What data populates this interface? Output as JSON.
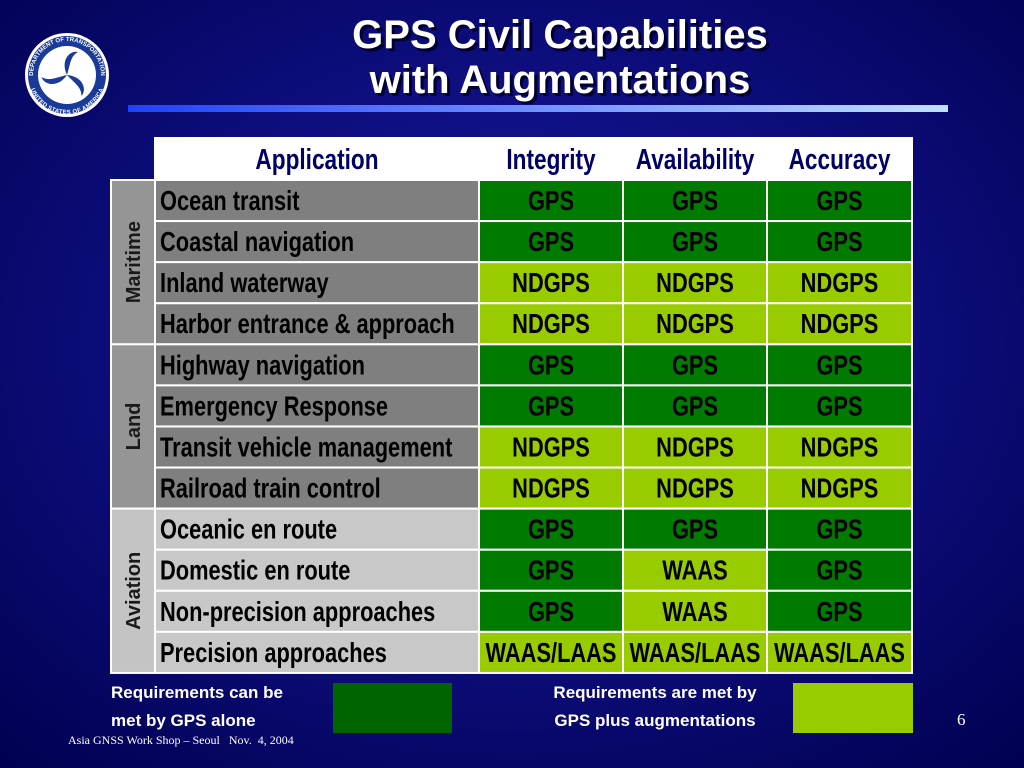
{
  "header": {
    "title_lines": [
      "GPS Civil Capabilities",
      "with Augmentations"
    ],
    "logo_top": "DEPARTMENT OF TRANSPORTATION",
    "logo_bottom": "UNITED STATES OF AMERICA"
  },
  "table": {
    "columns": [
      "Application",
      "Integrity",
      "Availability",
      "Accuracy"
    ],
    "groups": [
      {
        "label": "Maritime",
        "label_color": "#959595",
        "row_color": "#7f7f7f",
        "rows": [
          {
            "application": "Ocean transit",
            "cells": [
              {
                "text": "GPS",
                "color": "#007a00"
              },
              {
                "text": "GPS",
                "color": "#007a00"
              },
              {
                "text": "GPS",
                "color": "#007a00"
              }
            ]
          },
          {
            "application": "Coastal navigation",
            "cells": [
              {
                "text": "GPS",
                "color": "#007a00"
              },
              {
                "text": "GPS",
                "color": "#007a00"
              },
              {
                "text": "GPS",
                "color": "#007a00"
              }
            ]
          },
          {
            "application": "Inland waterway",
            "cells": [
              {
                "text": "NDGPS",
                "color": "#99cc00"
              },
              {
                "text": "NDGPS",
                "color": "#99cc00"
              },
              {
                "text": "NDGPS",
                "color": "#99cc00"
              }
            ]
          },
          {
            "application": "Harbor entrance & approach",
            "cells": [
              {
                "text": "NDGPS",
                "color": "#99cc00"
              },
              {
                "text": "NDGPS",
                "color": "#99cc00"
              },
              {
                "text": "NDGPS",
                "color": "#99cc00"
              }
            ]
          }
        ]
      },
      {
        "label": "Land",
        "label_color": "#959595",
        "row_color": "#7f7f7f",
        "rows": [
          {
            "application": "Highway navigation",
            "cells": [
              {
                "text": "GPS",
                "color": "#007a00"
              },
              {
                "text": "GPS",
                "color": "#007a00"
              },
              {
                "text": "GPS",
                "color": "#007a00"
              }
            ]
          },
          {
            "application": "Emergency Response",
            "cells": [
              {
                "text": "GPS",
                "color": "#007a00"
              },
              {
                "text": "GPS",
                "color": "#007a00"
              },
              {
                "text": "GPS",
                "color": "#007a00"
              }
            ]
          },
          {
            "application": "Transit vehicle management",
            "cells": [
              {
                "text": "NDGPS",
                "color": "#99cc00"
              },
              {
                "text": "NDGPS",
                "color": "#99cc00"
              },
              {
                "text": "NDGPS",
                "color": "#99cc00"
              }
            ]
          },
          {
            "application": "Railroad train control",
            "cells": [
              {
                "text": "NDGPS",
                "color": "#99cc00"
              },
              {
                "text": "NDGPS",
                "color": "#99cc00"
              },
              {
                "text": "NDGPS",
                "color": "#99cc00"
              }
            ]
          }
        ]
      },
      {
        "label": "Aviation",
        "label_color": "#c4c4c4",
        "row_color": "#c8c8c8",
        "rows": [
          {
            "application": "Oceanic en route",
            "cells": [
              {
                "text": "GPS",
                "color": "#007a00"
              },
              {
                "text": "GPS",
                "color": "#007a00"
              },
              {
                "text": "GPS",
                "color": "#007a00"
              }
            ]
          },
          {
            "application": "Domestic en route",
            "cells": [
              {
                "text": "GPS",
                "color": "#007a00"
              },
              {
                "text": "WAAS",
                "color": "#99cc00"
              },
              {
                "text": "GPS",
                "color": "#007a00"
              }
            ]
          },
          {
            "application": "Non-precision approaches",
            "cells": [
              {
                "text": "GPS",
                "color": "#007a00"
              },
              {
                "text": "WAAS",
                "color": "#99cc00"
              },
              {
                "text": "GPS",
                "color": "#007a00"
              }
            ]
          },
          {
            "application": "Precision approaches",
            "cells": [
              {
                "text": "WAAS/LAAS",
                "color": "#99cc00"
              },
              {
                "text": "WAAS/LAAS",
                "color": "#99cc00"
              },
              {
                "text": "WAAS/LAAS",
                "color": "#99cc00"
              }
            ]
          }
        ]
      }
    ]
  },
  "legend": [
    {
      "lines": [
        "Requirements can be",
        "met by GPS alone"
      ],
      "color": "#006400"
    },
    {
      "lines": [
        "Requirements are met by",
        "GPS plus augmentations"
      ],
      "color": "#99cc00"
    }
  ],
  "footer": {
    "text": "Asia GNSS Work Shop – Seoul   Nov.  4, 2004",
    "page_number": "6"
  }
}
